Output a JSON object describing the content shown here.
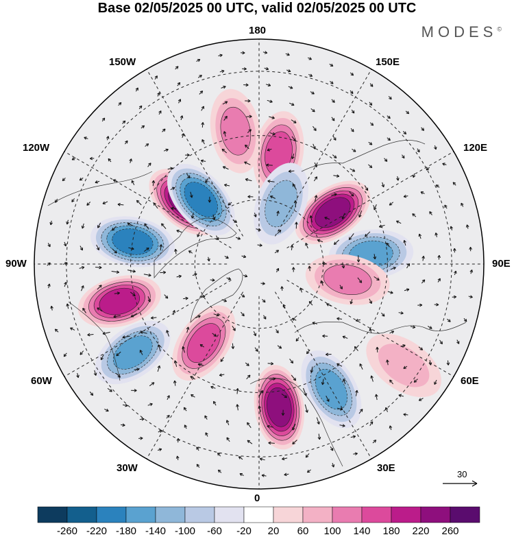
{
  "title": "Base 02/05/2025 00 UTC, valid 02/05/2025 00 UTC",
  "brand": "MODES",
  "brand_mark": "©",
  "longitude_labels": {
    "lon180": "180",
    "lon150W": "150W",
    "lon150E": "150E",
    "lon120W": "120W",
    "lon120E": "120E",
    "lon90W": "90W",
    "lon90E": "90E",
    "lon60W": "60W",
    "lon60E": "60E",
    "lon30W": "30W",
    "lon30E": "30E",
    "lon0": "0"
  },
  "reference_vector": {
    "label": "30",
    "value": 30
  },
  "colorbar": {
    "labels": [
      "-260",
      "-220",
      "-180",
      "-140",
      "-100",
      "-60",
      "-20",
      "20",
      "60",
      "100",
      "140",
      "180",
      "220",
      "260"
    ],
    "colors": [
      "#0d3b5e",
      "#135f8d",
      "#2b82bd",
      "#5aa2d0",
      "#8fb7d9",
      "#b9c9e4",
      "#e2e2f0",
      "#ffffff",
      "#f7d5d8",
      "#f3b1c5",
      "#e97cb0",
      "#dc4a9c",
      "#bb1c8a",
      "#8e0f7d",
      "#5a0c6e"
    ]
  },
  "anomaly_centers": [
    {
      "lon": -130,
      "lat": 60,
      "value": 250,
      "name": "positive-center-gulf-alaska"
    },
    {
      "lon": -138,
      "lat": 63,
      "value": -190,
      "name": "negative-center-alaska"
    },
    {
      "lon": -75,
      "lat": 45,
      "value": 200,
      "name": "positive-center-east-us"
    },
    {
      "lon": -100,
      "lat": 50,
      "value": -180,
      "name": "negative-center-central-canada"
    },
    {
      "lon": 125,
      "lat": 62,
      "value": 220,
      "name": "positive-center-east-siberia"
    },
    {
      "lon": 95,
      "lat": 55,
      "value": -170,
      "name": "negative-center-central-siberia"
    },
    {
      "lon": 8,
      "lat": 45,
      "value": 230,
      "name": "positive-center-europe"
    },
    {
      "lon": 30,
      "lat": 45,
      "value": -160,
      "name": "negative-center-black-sea"
    },
    {
      "lon": -55,
      "lat": 42,
      "value": -170,
      "name": "negative-center-north-atlantic"
    },
    {
      "lon": -35,
      "lat": 60,
      "value": 140,
      "name": "positive-center-greenland"
    },
    {
      "lon": 170,
      "lat": 55,
      "value": 150,
      "name": "positive-center-bering"
    },
    {
      "lon": 80,
      "lat": 62,
      "value": 120,
      "name": "positive-center-west-siberia"
    },
    {
      "lon": 160,
      "lat": 70,
      "value": -100,
      "name": "negative-center-east-siberian-sea"
    },
    {
      "lon": -170,
      "lat": 48,
      "value": 100,
      "name": "positive-center-north-pacific"
    },
    {
      "lon": 55,
      "lat": 35,
      "value": 80,
      "name": "positive-center-middle-east"
    }
  ]
}
